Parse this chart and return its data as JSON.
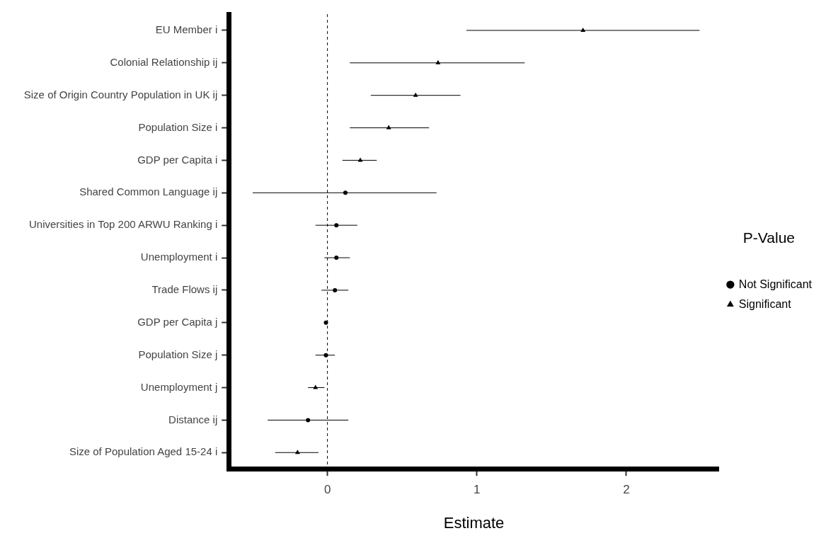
{
  "chart_data": {
    "type": "scatter",
    "orientation": "horizontal",
    "xlabel": "Estimate",
    "legend_title": "P-Value",
    "legend": "right",
    "grid": false,
    "categories": [
      "EU Member i",
      "Colonial Relationship ij",
      "Size of Origin Country Population in UK ij",
      "Population Size i",
      "GDP per Capita i",
      "Shared Common Language ij",
      "Universities in Top 200 ARWU Ranking i",
      "Unemployment i",
      "Trade Flows ij",
      "GDP per Capita j",
      "Population Size j",
      "Unemployment j",
      "Distance ij",
      "Size of Population Aged 15-24 i"
    ],
    "xlim": [
      -0.66,
      2.62
    ],
    "xticks": [
      0,
      1,
      2
    ],
    "ref_lines": [
      {
        "axis": "x",
        "value": 0,
        "line_style": "dashed",
        "color": "#000000"
      }
    ],
    "series": [
      {
        "name": "Not Significant",
        "color": "#000000",
        "marker": "circle",
        "values": [
          null,
          null,
          null,
          null,
          null,
          0.12,
          0.06,
          0.06,
          0.05,
          -0.01,
          -0.01,
          null,
          -0.13,
          null
        ],
        "errors": [
          null,
          null,
          null,
          null,
          null,
          [
            -0.5,
            0.73
          ],
          [
            -0.08,
            0.2
          ],
          [
            -0.02,
            0.15
          ],
          [
            -0.04,
            0.14
          ],
          null,
          [
            -0.08,
            0.05
          ],
          null,
          [
            -0.4,
            0.14
          ],
          null
        ]
      },
      {
        "name": "Significant",
        "color": "#000000",
        "marker": "triangle",
        "values": [
          1.71,
          0.74,
          0.59,
          0.41,
          0.22,
          null,
          null,
          null,
          null,
          null,
          null,
          -0.08,
          null,
          -0.2
        ],
        "errors": [
          [
            0.93,
            2.49
          ],
          [
            0.15,
            1.32
          ],
          [
            0.29,
            0.89
          ],
          [
            0.15,
            0.68
          ],
          [
            0.1,
            0.33
          ],
          null,
          null,
          null,
          null,
          null,
          null,
          [
            -0.13,
            -0.02
          ],
          null,
          [
            -0.35,
            -0.06
          ]
        ]
      }
    ]
  }
}
